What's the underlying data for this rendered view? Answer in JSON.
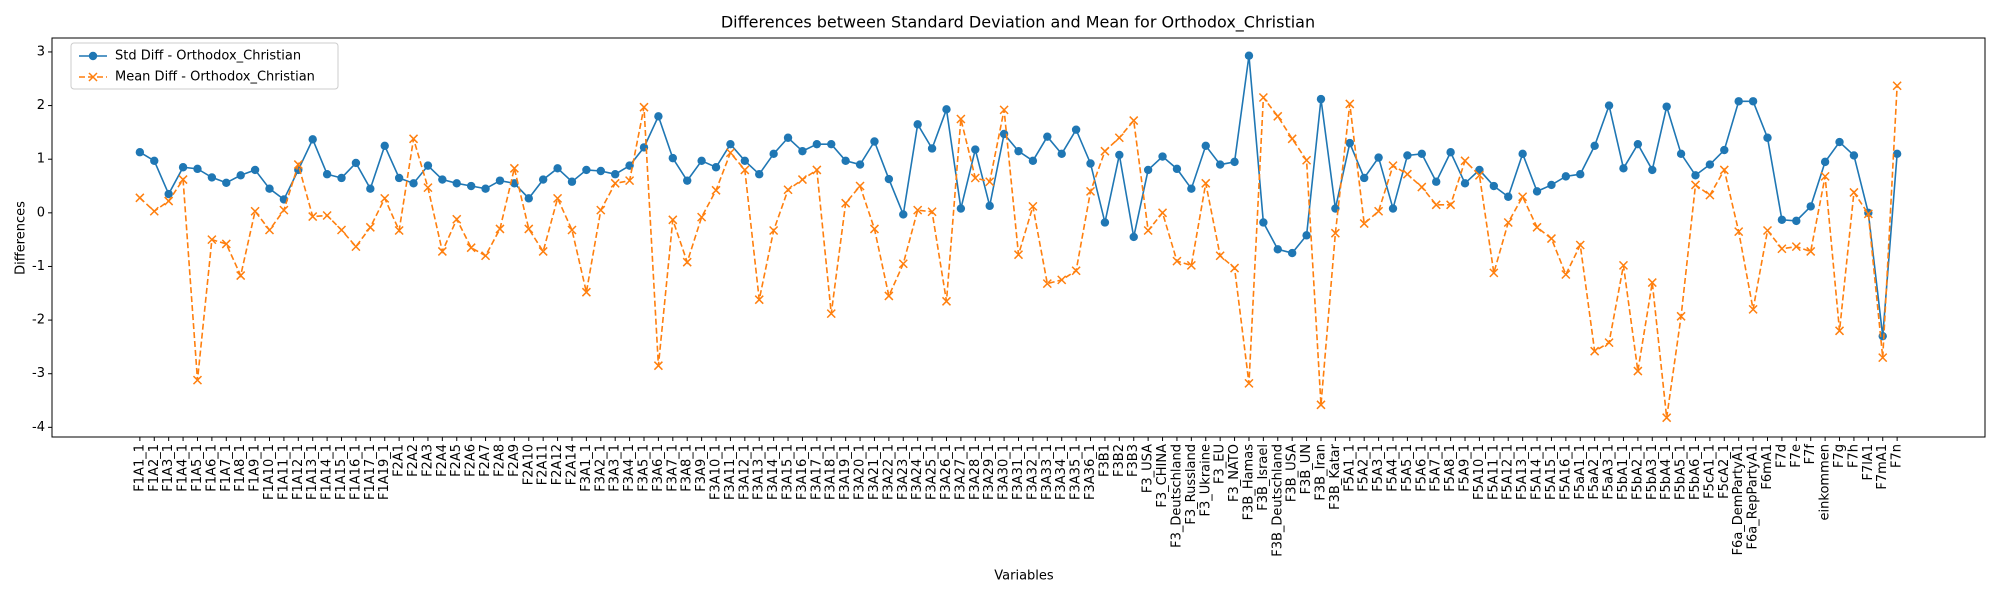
{
  "chart_data": {
    "type": "line",
    "title": "Differences between Standard Deviation and Mean for Orthodox_Christian",
    "xlabel": "Variables",
    "ylabel": "Differences",
    "categories": [
      "F1A1_1",
      "F1A2_1",
      "F1A3_1",
      "F1A4_1",
      "F1A5_1",
      "F1A6_1",
      "F1A7_1",
      "F1A8_1",
      "F1A9_1",
      "F1A10_1",
      "F1A11_1",
      "F1A12_1",
      "F1A13_1",
      "F1A14_1",
      "F1A15_1",
      "F1A16_1",
      "F1A17_1",
      "F1A19_1",
      "F2A1",
      "F2A2",
      "F2A3",
      "F2A4",
      "F2A5",
      "F2A6",
      "F2A7",
      "F2A8",
      "F2A9",
      "F2A10",
      "F2A11",
      "F2A12",
      "F2A14",
      "F3A1_1",
      "F3A2_1",
      "F3A3_1",
      "F3A4_1",
      "F3A5_1",
      "F3A6_1",
      "F3A7_1",
      "F3A8_1",
      "F3A9_1",
      "F3A10_1",
      "F3A11_1",
      "F3A12_1",
      "F3A13_1",
      "F3A14_1",
      "F3A15_1",
      "F3A16_1",
      "F3A17_1",
      "F3A18_1",
      "F3A19_1",
      "F3A20_1",
      "F3A21_1",
      "F3A22_1",
      "F3A23_1",
      "F3A24_1",
      "F3A25_1",
      "F3A26_1",
      "F3A27_1",
      "F3A28_1",
      "F3A29_1",
      "F3A30_1",
      "F3A31_1",
      "F3A32_1",
      "F3A33_1",
      "F3A34_1",
      "F3A35_1",
      "F3A36_1",
      "F3B1",
      "F3B2",
      "F3B3",
      "F3_USA",
      "F3_CHINA",
      "F3_Deutschland",
      "F3_Russland",
      "F3_Ukraine",
      "F3_EU",
      "F3_NATO",
      "F3B_Hamas",
      "F3B_Israel",
      "F3B_Deutschland",
      "F3B_USA",
      "F3B_UN",
      "F3B_Iran",
      "F3B_Katar",
      "F5A1_1",
      "F5A2_1",
      "F5A3_1",
      "F5A4_1",
      "F5A5_1",
      "F5A6_1",
      "F5A7_1",
      "F5A8_1",
      "F5A9_1",
      "F5A10_1",
      "F5A11_1",
      "F5A12_1",
      "F5A13_1",
      "F5A14_1",
      "F5A15_1",
      "F5A16_1",
      "F5aA1_1",
      "F5aA2_1",
      "F5aA3_1",
      "F5bA1_1",
      "F5bA2_1",
      "F5bA3_1",
      "F5bA4_1",
      "F5bA5_1",
      "F5bA6_1",
      "F5cA1_1",
      "F5cA2_1",
      "F6a_DemPartyA1",
      "F6a_RepPartyA1",
      "F6mA1",
      "F7d",
      "F7e",
      "F7f",
      "einkommen",
      "F7g",
      "F7h",
      "F7lA1",
      "F7mA1",
      "F7n"
    ],
    "series": [
      {
        "name": "Std Diff - Orthodox_Christian",
        "color": "#1f77b4",
        "marker": "o",
        "linestyle": "solid",
        "values": [
          1.13,
          0.97,
          0.35,
          0.85,
          0.82,
          0.66,
          0.56,
          0.7,
          0.8,
          0.45,
          0.25,
          0.8,
          1.37,
          0.72,
          0.65,
          0.93,
          0.45,
          1.25,
          0.65,
          0.55,
          0.88,
          0.62,
          0.55,
          0.5,
          0.45,
          0.6,
          0.55,
          0.27,
          0.62,
          0.83,
          0.58,
          0.8,
          0.78,
          0.72,
          0.88,
          1.22,
          1.8,
          1.02,
          0.6,
          0.97,
          0.85,
          1.28,
          0.97,
          0.72,
          1.1,
          1.4,
          1.15,
          1.28,
          1.28,
          0.97,
          0.9,
          1.33,
          0.63,
          -0.03,
          1.65,
          1.2,
          1.93,
          0.08,
          1.18,
          0.13,
          1.47,
          1.15,
          0.97,
          1.42,
          1.1,
          1.55,
          0.92,
          -0.18,
          1.08,
          -0.45,
          0.8,
          1.05,
          0.82,
          0.45,
          1.25,
          0.9,
          0.95,
          2.93,
          -0.18,
          -0.68,
          -0.75,
          -0.42,
          2.12,
          0.08,
          1.3,
          0.65,
          1.03,
          0.08,
          1.07,
          1.1,
          0.58,
          1.13,
          0.55,
          0.8,
          0.5,
          0.3,
          1.1,
          0.4,
          0.52,
          0.68,
          0.72,
          1.25,
          2.0,
          0.83,
          1.28,
          0.8,
          1.98,
          1.1,
          0.7,
          0.9,
          1.17,
          2.08,
          2.08,
          1.4,
          -0.13,
          -0.15,
          0.12,
          0.95,
          1.32,
          1.07,
          0.0,
          -2.3,
          1.1
        ]
      },
      {
        "name": "Mean Diff - Orthodox_Christian",
        "color": "#ff7f0e",
        "marker": "x",
        "linestyle": "dashed",
        "values": [
          0.28,
          0.03,
          0.22,
          0.62,
          -3.12,
          -0.5,
          -0.58,
          -1.17,
          0.03,
          -0.32,
          0.05,
          0.9,
          -0.07,
          -0.05,
          -0.32,
          -0.63,
          -0.27,
          0.27,
          -0.33,
          1.38,
          0.47,
          -0.72,
          -0.12,
          -0.65,
          -0.8,
          -0.3,
          0.83,
          -0.3,
          -0.72,
          0.27,
          -0.32,
          -1.48,
          0.05,
          0.55,
          0.6,
          1.97,
          -2.85,
          -0.13,
          -0.92,
          -0.08,
          0.42,
          1.12,
          0.8,
          -1.62,
          -0.33,
          0.43,
          0.62,
          0.8,
          -1.88,
          0.18,
          0.5,
          -0.3,
          -1.55,
          -0.95,
          0.05,
          0.02,
          -1.65,
          1.75,
          0.65,
          0.58,
          1.92,
          -0.78,
          0.12,
          -1.32,
          -1.25,
          -1.08,
          0.4,
          1.15,
          1.4,
          1.72,
          -0.33,
          0.0,
          -0.9,
          -0.98,
          0.55,
          -0.8,
          -1.03,
          -3.18,
          2.15,
          1.8,
          1.38,
          0.98,
          -3.58,
          -0.38,
          2.03,
          -0.2,
          0.03,
          0.88,
          0.72,
          0.48,
          0.15,
          0.15,
          0.97,
          0.7,
          -1.12,
          -0.18,
          0.3,
          -0.27,
          -0.48,
          -1.15,
          -0.6,
          -2.58,
          -2.42,
          -0.98,
          -2.95,
          -1.3,
          -3.82,
          -1.93,
          0.52,
          0.33,
          0.8,
          -0.35,
          -1.8,
          -0.33,
          -0.67,
          -0.63,
          -0.72,
          0.68,
          -2.2,
          0.38,
          -0.02,
          -2.7,
          2.37
        ]
      }
    ],
    "ylim": [
      -4.18,
      3.26
    ],
    "yticks": [
      -4,
      -3,
      -2,
      -1,
      0,
      1,
      2,
      3
    ],
    "grid": false,
    "legend": "upper left"
  }
}
